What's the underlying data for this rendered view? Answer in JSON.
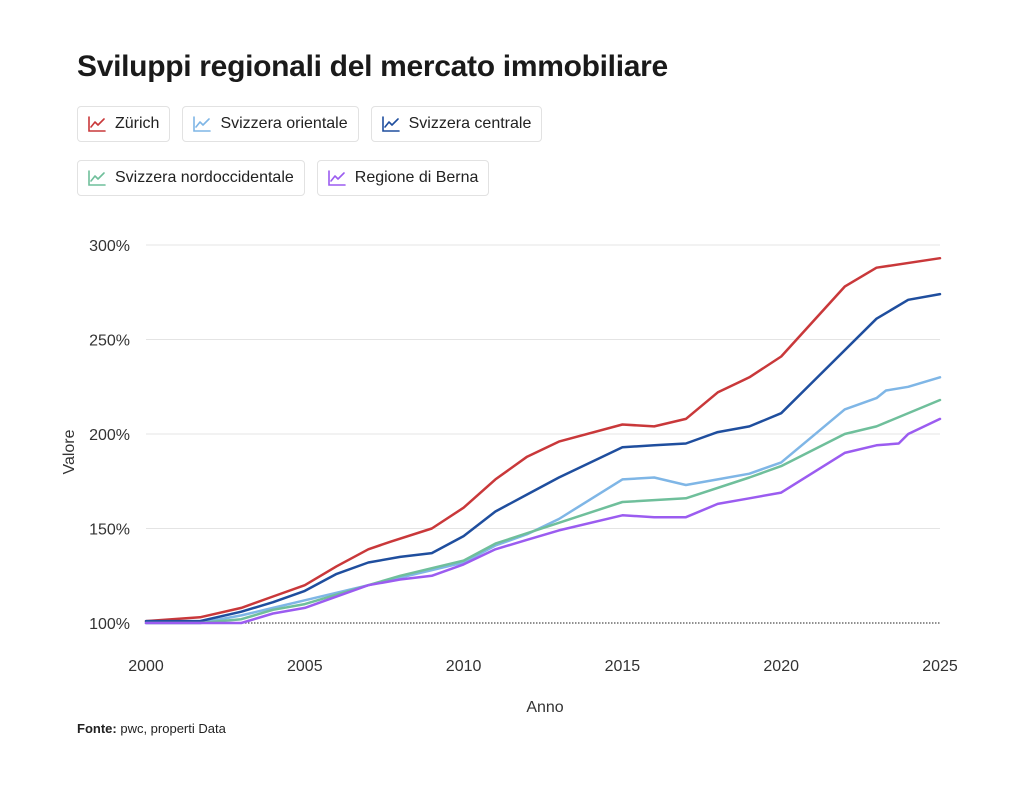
{
  "title": "Sviluppi regionali del mercato immobiliare",
  "source": {
    "label": "Fonte:",
    "text": "pwc, properti Data"
  },
  "chart_data": {
    "type": "line",
    "title": "Sviluppi regionali del mercato immobiliare",
    "xlabel": "Anno",
    "ylabel": "Valore",
    "xlim": [
      2000,
      2025
    ],
    "ylim": [
      100,
      300
    ],
    "xticks": [
      2000,
      2005,
      2010,
      2015,
      2020,
      2025
    ],
    "yticks": [
      100,
      150,
      200,
      250,
      300
    ],
    "ytick_labels": [
      "100%",
      "150%",
      "200%",
      "250%",
      "300%"
    ],
    "grid": "horizontal",
    "legend_position": "top",
    "series": [
      {
        "name": "Zürich",
        "color": "#c9383a",
        "x": [
          2000,
          2001.7,
          2003,
          2004,
          2005,
          2006,
          2007,
          2007.7,
          2009,
          2010,
          2011,
          2012,
          2013,
          2015,
          2016,
          2017,
          2018,
          2019,
          2020,
          2022,
          2023,
          2025
        ],
        "y": [
          101,
          103,
          108,
          114,
          120,
          130,
          139,
          143,
          150,
          161,
          176,
          188,
          196,
          205,
          204,
          208,
          222,
          230,
          241,
          278,
          288,
          293
        ]
      },
      {
        "name": "Svizzera orientale",
        "color": "#7fb6e6",
        "x": [
          2000,
          2001.7,
          2003,
          2004,
          2005,
          2007,
          2008,
          2009,
          2010,
          2011,
          2012,
          2013,
          2015,
          2016,
          2017,
          2018,
          2019,
          2020,
          2021,
          2022,
          2023,
          2023.3,
          2024,
          2025
        ],
        "y": [
          100,
          100,
          104,
          108,
          112,
          120,
          124,
          128,
          132,
          141,
          147,
          155,
          176,
          177,
          173,
          176,
          179,
          185,
          199,
          213,
          219,
          223,
          225,
          230
        ]
      },
      {
        "name": "Svizzera centrale",
        "color": "#1f4e9e",
        "x": [
          2000,
          2001.7,
          2003,
          2004,
          2005,
          2006,
          2007,
          2008,
          2009,
          2010,
          2011,
          2012,
          2013,
          2015,
          2016,
          2017,
          2018,
          2019,
          2020,
          2023,
          2024,
          2025
        ],
        "y": [
          101,
          101,
          106,
          111,
          117,
          126,
          132,
          135,
          137,
          146,
          159,
          168,
          177,
          193,
          194,
          195,
          201,
          204,
          211,
          261,
          271,
          274
        ]
      },
      {
        "name": "Svizzera nordoccidentale",
        "color": "#6fbf9b",
        "x": [
          2000,
          2001.7,
          2003,
          2004,
          2005,
          2007,
          2008,
          2009,
          2010,
          2011,
          2013,
          2015,
          2017,
          2019,
          2020,
          2022,
          2023,
          2025
        ],
        "y": [
          100,
          100,
          102,
          107,
          110,
          120,
          125,
          129,
          133,
          142,
          153,
          164,
          166,
          177,
          183,
          200,
          204,
          218
        ]
      },
      {
        "name": "Regione di Berna",
        "color": "#9b5cf0",
        "x": [
          2000,
          2001.7,
          2003,
          2004,
          2005,
          2007,
          2008,
          2009,
          2010,
          2011,
          2012,
          2013,
          2015,
          2016,
          2017,
          2018,
          2019,
          2020,
          2022,
          2023,
          2023.7,
          2024,
          2025
        ],
        "y": [
          100,
          100,
          100,
          105,
          108,
          120,
          123,
          125,
          131,
          139,
          144,
          149,
          157,
          156,
          156,
          163,
          166,
          169,
          190,
          194,
          195,
          200,
          208
        ]
      }
    ]
  }
}
